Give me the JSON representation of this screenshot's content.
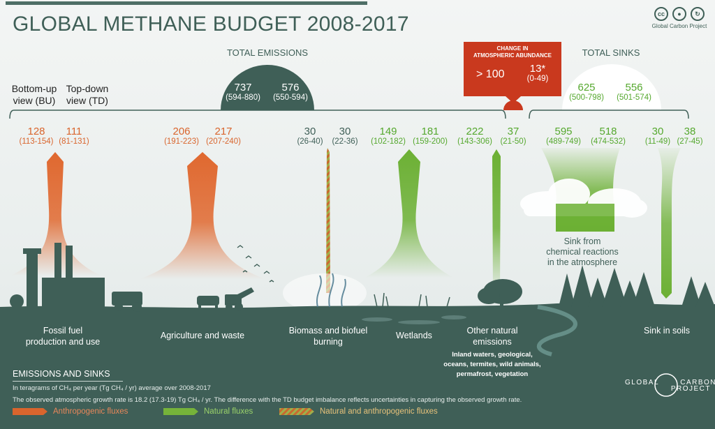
{
  "title": "GLOBAL METHANE BUDGET 2008-2017",
  "license_icons": [
    "cc-icon",
    "by-attribution-icon",
    "sa-icon"
  ],
  "license_label": "Global Carbon Project",
  "view_labels": {
    "bu": [
      "Bottom-up",
      "view (BU)"
    ],
    "td": [
      "Top-down",
      "view  (TD)"
    ]
  },
  "total_emissions": {
    "label": "TOTAL EMISSIONS",
    "bu": "737",
    "bu_range": "(594-880)",
    "td": "576",
    "td_range": "(550-594)"
  },
  "total_sinks": {
    "label": "TOTAL SINKS",
    "bu": "625",
    "bu_range": "(500-798)",
    "td": "556",
    "td_range": "(501-574)"
  },
  "change": {
    "label": [
      "CHANGE IN",
      "ATMOSPHERIC ABUNDANCE"
    ],
    "bu": "> 100",
    "td": "13*",
    "td_range": "(0-49)"
  },
  "flows": [
    {
      "id": "fossil",
      "type": "anthropogenic",
      "bu": "128",
      "bu_range": "(113-154)",
      "td": "111",
      "td_range": "(81-131)"
    },
    {
      "id": "agriculture",
      "type": "anthropogenic",
      "bu": "206",
      "bu_range": "(191-223)",
      "td": "217",
      "td_range": "(207-240)"
    },
    {
      "id": "biomass",
      "type": "mixed",
      "bu": "30",
      "bu_range": "(26-40)",
      "td": "30",
      "td_range": "(22-36)"
    },
    {
      "id": "wetlands",
      "type": "natural",
      "bu": "149",
      "bu_range": "(102-182)",
      "td": "181",
      "td_range": "(159-200)"
    },
    {
      "id": "other",
      "type": "natural",
      "bu": "222",
      "bu_range": "(143-306)",
      "td": "37",
      "td_range": "(21-50)"
    },
    {
      "id": "chem_sink",
      "type": "natural",
      "bu": "595",
      "bu_range": "(489-749)",
      "td": "518",
      "td_range": "(474-532)"
    },
    {
      "id": "soil_sink",
      "type": "natural",
      "bu": "30",
      "bu_range": "(11-49)",
      "td": "38",
      "td_range": "(27-45)"
    }
  ],
  "categories": {
    "fossil": [
      "Fossil fuel",
      "production and use"
    ],
    "agriculture": [
      "Agriculture and waste"
    ],
    "biomass": [
      "Biomass and biofuel",
      "burning"
    ],
    "wetlands": [
      "Wetlands"
    ],
    "other": [
      "Other natural",
      "emissions"
    ],
    "other_sub": [
      "Inland waters, geological,",
      "oceans, termites, wild animals,",
      "permafrost, vegetation"
    ],
    "chem_sink": [
      "Sink from",
      "chemical reactions",
      "in the atmosphere"
    ],
    "soil_sink": [
      "Sink in soils"
    ]
  },
  "legend": {
    "heading": "EMISSIONS AND SINKS",
    "unit_note": "In teragrams of CH₄ per year (Tg CH₄ / yr) average over 2008-2017",
    "growth_note": "The observed atmospheric growth rate is 18.2 (17.3-19) Tg CH₄ / yr. The difference with the TD budget imbalance reflects uncertainties in capturing the observed growth rate.",
    "items": [
      {
        "label": "Anthropogenic fluxes",
        "color": "#d9652d"
      },
      {
        "label": "Natural fluxes",
        "color": "#76b33a"
      },
      {
        "label": "Natural and anthropogenic  fluxes",
        "color": "#b98a3a"
      }
    ]
  },
  "logo_text": [
    "GLOBAL",
    "CARBON",
    "PROJECT"
  ],
  "colors": {
    "anthropogenic": "#d9652d",
    "natural": "#76b33a",
    "mixed": "#b98a3a",
    "land": "#3f5f57",
    "change_box": "#c9391e"
  }
}
